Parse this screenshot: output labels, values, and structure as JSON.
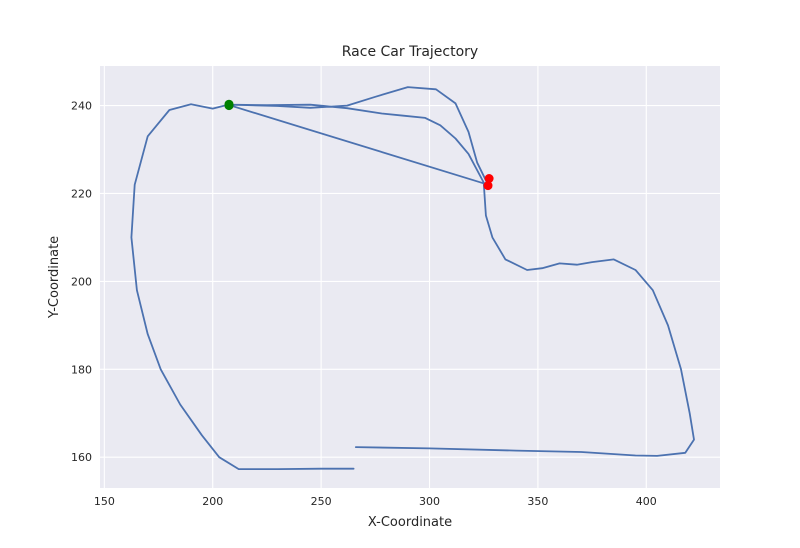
{
  "chart_data": {
    "type": "line",
    "title": "Race Car Trajectory",
    "xlabel": "X-Coordinate",
    "ylabel": "Y-Coordinate",
    "xlim": [
      148,
      434
    ],
    "ylim": [
      153,
      249
    ],
    "xticks": [
      150,
      200,
      250,
      300,
      350,
      400
    ],
    "yticks": [
      160,
      180,
      200,
      220,
      240
    ],
    "grid": true,
    "background": "#eaeaf2",
    "line_color": "#4c72b0",
    "series": [
      {
        "name": "",
        "points": [
          [
            265,
            157.4
          ],
          [
            250,
            157.4
          ],
          [
            230,
            157.3
          ],
          [
            212,
            157.3
          ],
          [
            203,
            160
          ],
          [
            195,
            165
          ],
          [
            185,
            172
          ],
          [
            176,
            180
          ],
          [
            170,
            188
          ],
          [
            165,
            198
          ],
          [
            162.5,
            210
          ],
          [
            164,
            222
          ],
          [
            170,
            233
          ],
          [
            180,
            239
          ],
          [
            190,
            240.3
          ],
          [
            200,
            239.3
          ],
          [
            207,
            240.2
          ],
          [
            216,
            240.1
          ],
          [
            230,
            239.9
          ],
          [
            245,
            239.5
          ],
          [
            262,
            240
          ],
          [
            275,
            242
          ],
          [
            290,
            244.2
          ],
          [
            303,
            243.7
          ],
          [
            312,
            240.5
          ],
          [
            318,
            234
          ],
          [
            322,
            227
          ],
          [
            327,
            222
          ],
          [
            207,
            240.2
          ],
          [
            225,
            240.1
          ],
          [
            245,
            240.2
          ],
          [
            262,
            239.4
          ],
          [
            278,
            238.2
          ],
          [
            288,
            237.7
          ],
          [
            298,
            237.2
          ],
          [
            305,
            235.5
          ],
          [
            312,
            232.5
          ],
          [
            318,
            229
          ],
          [
            325,
            222.5
          ],
          [
            326,
            215
          ],
          [
            329,
            210
          ],
          [
            335,
            205
          ],
          [
            345,
            202.6
          ],
          [
            352,
            203
          ],
          [
            360,
            204.1
          ],
          [
            368,
            203.8
          ],
          [
            375,
            204.4
          ],
          [
            385,
            205
          ],
          [
            395,
            202.6
          ],
          [
            403,
            198
          ],
          [
            410,
            190
          ],
          [
            416,
            180
          ],
          [
            420,
            170
          ],
          [
            422,
            164
          ],
          [
            418,
            161
          ],
          [
            405,
            160.3
          ],
          [
            395,
            160.4
          ],
          [
            370,
            161.2
          ],
          [
            340,
            161.5
          ],
          [
            300,
            162
          ],
          [
            266,
            162.3
          ]
        ]
      }
    ],
    "markers": [
      {
        "color": "#008000",
        "points": [
          [
            207.5,
            240.3
          ],
          [
            207.5,
            240.0
          ]
        ]
      },
      {
        "color": "#ff0000",
        "points": [
          [
            327.5,
            223.4
          ],
          [
            327.0,
            221.8
          ]
        ]
      }
    ]
  }
}
